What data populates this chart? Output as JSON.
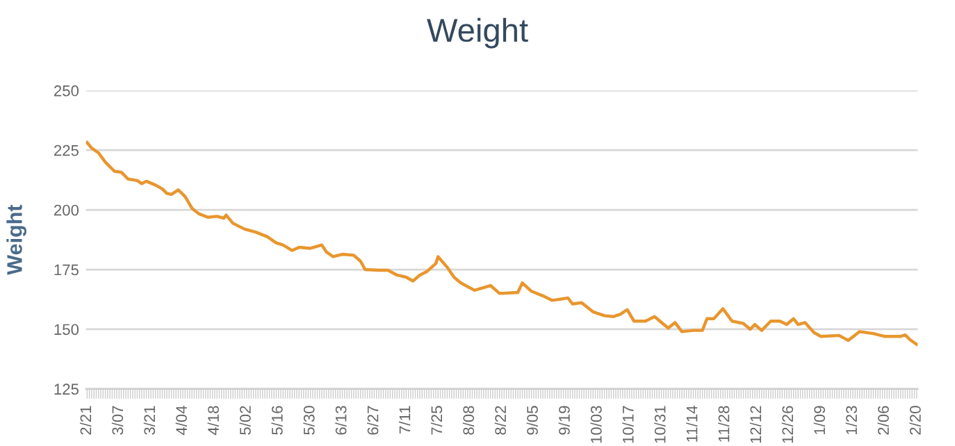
{
  "chart_data": {
    "type": "line",
    "title": "Weight",
    "ylabel": "Weight",
    "categories": [
      "2/21",
      null,
      null,
      null,
      null,
      null,
      null,
      null,
      null,
      null,
      null,
      null,
      null,
      null,
      "3/07",
      null,
      null,
      null,
      null,
      null,
      null,
      null,
      null,
      null,
      null,
      null,
      null,
      null,
      "3/21",
      null,
      null,
      null,
      null,
      null,
      null,
      null,
      null,
      null,
      null,
      null,
      null,
      null,
      "4/04",
      null,
      null,
      null,
      null,
      null,
      null,
      null,
      null,
      null,
      null,
      null,
      null,
      null,
      "4/18",
      null,
      null,
      null,
      null,
      null,
      null,
      null,
      null,
      null,
      null,
      null,
      null,
      null,
      "5/02",
      null,
      null,
      null,
      null,
      null,
      null,
      null,
      null,
      null,
      null,
      null,
      null,
      null,
      "5/16",
      null,
      null,
      null,
      null,
      null,
      null,
      null,
      null,
      null,
      null,
      null,
      null,
      null,
      "5/30",
      null,
      null,
      null,
      null,
      null,
      null,
      null,
      null,
      null,
      null,
      null,
      null,
      null,
      "6/13",
      null,
      null,
      null,
      null,
      null,
      null,
      null,
      null,
      null,
      null,
      null,
      null,
      null,
      "6/27",
      null,
      null,
      null,
      null,
      null,
      null,
      null,
      null,
      null,
      null,
      null,
      null,
      null,
      "7/11",
      null,
      null,
      null,
      null,
      null,
      null,
      null,
      null,
      null,
      null,
      null,
      null,
      null,
      "7/25",
      null,
      null,
      null,
      null,
      null,
      null,
      null,
      null,
      null,
      null,
      null,
      null,
      null,
      "8/08",
      null,
      null,
      null,
      null,
      null,
      null,
      null,
      null,
      null,
      null,
      null,
      null,
      null,
      "8/22",
      null,
      null,
      null,
      null,
      null,
      null,
      null,
      null,
      null,
      null,
      null,
      null,
      null,
      "9/05",
      null,
      null,
      null,
      null,
      null,
      null,
      null,
      null,
      null,
      null,
      null,
      null,
      null,
      "9/19",
      null,
      null,
      null,
      null,
      null,
      null,
      null,
      null,
      null,
      null,
      null,
      null,
      null,
      "10/03",
      null,
      null,
      null,
      null,
      null,
      null,
      null,
      null,
      null,
      null,
      null,
      null,
      null,
      "10/17",
      null,
      null,
      null,
      null,
      null,
      null,
      null,
      null,
      null,
      null,
      null,
      null,
      null,
      "10/31",
      null,
      null,
      null,
      null,
      null,
      null,
      null,
      null,
      null,
      null,
      null,
      null,
      null,
      "11/14",
      null,
      null,
      null,
      null,
      null,
      null,
      null,
      null,
      null,
      null,
      null,
      null,
      null,
      "11/28",
      null,
      null,
      null,
      null,
      null,
      null,
      null,
      null,
      null,
      null,
      null,
      null,
      null,
      "12/12",
      null,
      null,
      null,
      null,
      null,
      null,
      null,
      null,
      null,
      null,
      null,
      null,
      null,
      "12/26",
      null,
      null,
      null,
      null,
      null,
      null,
      null,
      null,
      null,
      null,
      null,
      null,
      null,
      "1/09",
      null,
      null,
      null,
      null,
      null,
      null,
      null,
      null,
      null,
      null,
      null,
      null,
      null,
      "1/23",
      null,
      null,
      null,
      null,
      null,
      null,
      null,
      null,
      null,
      null,
      null,
      null,
      null,
      "2/06",
      null,
      null,
      null,
      null,
      null,
      null,
      null,
      null,
      null,
      null,
      null,
      null,
      null,
      "2/20"
    ],
    "series": [
      {
        "color": "#e8962e",
        "values": [
          228.2,
          null,
          225.9,
          null,
          null,
          223.9,
          null,
          null,
          220,
          null,
          null,
          null,
          216.2,
          null,
          null,
          215.8,
          null,
          null,
          212.9,
          null,
          null,
          null,
          212.3,
          null,
          211,
          null,
          212,
          null,
          null,
          null,
          210.4,
          null,
          null,
          208.8,
          null,
          206.9,
          null,
          206.5,
          null,
          null,
          208.4,
          null,
          null,
          205.6,
          null,
          null,
          200.7,
          null,
          null,
          198.4,
          null,
          null,
          null,
          196.9,
          null,
          null,
          null,
          197.3,
          null,
          null,
          196.5,
          197.8,
          null,
          null,
          194.4,
          null,
          null,
          null,
          null,
          192,
          null,
          null,
          null,
          null,
          190.7,
          null,
          null,
          null,
          null,
          188.8,
          null,
          null,
          null,
          186.2,
          null,
          null,
          185.3,
          null,
          null,
          null,
          183,
          null,
          null,
          184.3,
          null,
          null,
          null,
          null,
          183.9,
          null,
          null,
          null,
          null,
          185.3,
          null,
          182.4,
          null,
          null,
          180.4,
          null,
          null,
          null,
          181.4,
          null,
          null,
          null,
          null,
          181,
          null,
          null,
          178.5,
          null,
          175,
          null,
          null,
          null,
          null,
          null,
          174.7,
          null,
          null,
          null,
          174.7,
          null,
          null,
          null,
          172.7,
          null,
          null,
          null,
          171.8,
          null,
          null,
          170.2,
          null,
          null,
          172.7,
          null,
          null,
          174.1,
          null,
          null,
          null,
          177.5,
          180.4,
          null,
          null,
          null,
          176,
          null,
          null,
          171.8,
          null,
          null,
          169.4,
          null,
          null,
          null,
          null,
          null,
          166.3,
          null,
          null,
          null,
          null,
          null,
          null,
          168.3,
          null,
          null,
          null,
          165,
          null,
          null,
          null,
          null,
          null,
          null,
          null,
          165.4,
          null,
          169.4,
          null,
          null,
          null,
          165.9,
          null,
          null,
          null,
          null,
          164,
          null,
          null,
          null,
          162.1,
          null,
          null,
          162.5,
          null,
          null,
          null,
          163.1,
          null,
          160.6,
          null,
          null,
          null,
          161.1,
          null,
          null,
          null,
          null,
          157.3,
          null,
          null,
          null,
          null,
          155.7,
          null,
          null,
          null,
          155.3,
          null,
          null,
          156.3,
          null,
          null,
          158.2,
          null,
          null,
          153.4,
          null,
          null,
          null,
          null,
          153.4,
          null,
          null,
          null,
          155.3,
          null,
          null,
          null,
          null,
          null,
          150.5,
          null,
          null,
          152.8,
          null,
          null,
          149,
          null,
          null,
          null,
          null,
          149.5,
          null,
          null,
          null,
          149.5,
          null,
          154.4,
          null,
          null,
          154.4,
          null,
          null,
          null,
          158.6,
          null,
          null,
          null,
          153.4,
          null,
          null,
          null,
          null,
          152.4,
          null,
          null,
          150,
          null,
          152,
          null,
          null,
          149.5,
          null,
          null,
          null,
          153.4,
          null,
          null,
          null,
          153.4,
          null,
          null,
          152,
          null,
          null,
          154.4,
          null,
          152,
          null,
          null,
          152.8,
          null,
          null,
          null,
          148.6,
          null,
          null,
          147,
          null,
          null,
          null,
          null,
          null,
          null,
          null,
          147.4,
          null,
          null,
          null,
          145.3,
          null,
          null,
          null,
          null,
          149,
          null,
          null,
          null,
          null,
          null,
          148.2,
          null,
          null,
          null,
          null,
          147,
          null,
          null,
          null,
          null,
          null,
          null,
          147,
          null,
          147.6,
          null,
          145.7,
          null,
          null,
          143.7
        ]
      }
    ],
    "ylim": [
      125,
      250
    ],
    "yticks": [
      125,
      150,
      175,
      200,
      225,
      250
    ],
    "grid": "y",
    "legend": false,
    "marker": "none",
    "line_style": "solid"
  }
}
